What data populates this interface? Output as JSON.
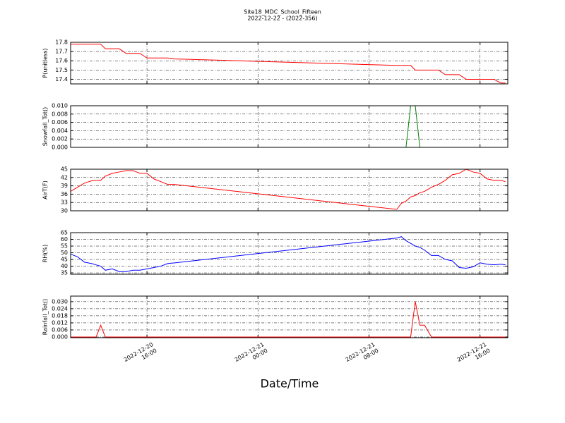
{
  "chart_data": [
    {
      "type": "line",
      "title": "Site18_MDC_School_Fifteen",
      "subtitle": "2022-12-22 - (2022-356)",
      "ylabel": "P(unitless)",
      "color": "#ff0000",
      "values": [
        17.78,
        17.78,
        17.78,
        17.78,
        17.78,
        17.78,
        17.73,
        17.73,
        17.73,
        17.68,
        17.68,
        17.68,
        17.63,
        17.63,
        17.63,
        17.63,
        17.62,
        17.55,
        17.55,
        17.55,
        17.55,
        17.5,
        17.5,
        17.5,
        17.5,
        17.5,
        17.45,
        17.45,
        17.45,
        17.4,
        17.4,
        17.4,
        17.4,
        17.4,
        17.36,
        17.36
      ],
      "ylim": [
        17.35,
        17.8
      ],
      "yticks": [
        17.4,
        17.5,
        17.6,
        17.7,
        17.8
      ],
      "grid": true
    },
    {
      "type": "line",
      "ylabel": "Snowfall_Tot()",
      "color": "#008000",
      "values": [
        0,
        0,
        0,
        0,
        0,
        0,
        0,
        0,
        0,
        0,
        0,
        0,
        0,
        0,
        0,
        0,
        0,
        0,
        0,
        0,
        0.01,
        0.01,
        0,
        0,
        0,
        0,
        0,
        0,
        0,
        0,
        0,
        0,
        0,
        0,
        0,
        0
      ],
      "ylim": [
        0,
        0.01
      ],
      "yticks": [
        {
          "value": 0,
          "label": "0.000"
        },
        {
          "value": 0.002,
          "label": "0.002"
        },
        {
          "value": 0.004,
          "label": "0.004"
        },
        {
          "value": 0.006,
          "label": "0.006"
        },
        {
          "value": 0.008,
          "label": "0.008"
        },
        {
          "value": 0.01,
          "label": "0.010"
        }
      ],
      "grid": true
    },
    {
      "type": "line",
      "ylabel": "AirT(F)",
      "color": "#ff0000",
      "values": [
        37,
        38.5,
        40,
        40.8,
        41,
        41,
        42.5,
        43.5,
        44,
        44.5,
        44.5,
        43.5,
        43.5,
        41.5,
        40.5,
        39.5,
        39.5,
        30.5,
        32.7,
        33.5,
        35,
        35.5,
        36.5,
        37,
        38.5,
        39.5,
        41,
        43,
        43.5,
        45,
        44,
        43.5,
        41.5,
        41,
        41,
        40.5
      ],
      "ylim": [
        30,
        45
      ],
      "yticks": [
        30,
        33,
        36,
        39,
        42,
        45
      ],
      "grid": true
    },
    {
      "type": "line",
      "ylabel": "RH(%)",
      "color": "#0000ff",
      "values": [
        49,
        47,
        43,
        42,
        41,
        40,
        37,
        38,
        36,
        36,
        37,
        37,
        38,
        39,
        40,
        42,
        42.5,
        61,
        62,
        59,
        57,
        55,
        54,
        52,
        48,
        48,
        45,
        44,
        39,
        38.5,
        39.5,
        42.5,
        41.5,
        41,
        41.5,
        41
      ],
      "ylim": [
        34,
        65
      ],
      "yticks": [
        35,
        40,
        45,
        50,
        55,
        60,
        65
      ],
      "grid": true
    },
    {
      "type": "line",
      "ylabel": "Rainfall_Tot()",
      "xlabel": "Date/Time",
      "color": "#ff0000",
      "x": [
        "2022-12-20 10:30",
        "2022-12-20 11:00",
        "2022-12-20 11:30",
        "2022-12-20 12:00",
        "2022-12-20 12:20",
        "2022-12-20 12:40",
        "2022-12-20 13:00",
        "2022-12-20 13:30",
        "2022-12-20 14:00",
        "2022-12-20 14:30",
        "2022-12-20 15:00",
        "2022-12-20 15:30",
        "2022-12-20 16:00",
        "2022-12-20 16:30",
        "2022-12-20 17:00",
        "2022-12-20 17:30",
        "2022-12-20 18:00",
        "2022-12-21 10:00",
        "2022-12-21 10:20",
        "2022-12-21 10:40",
        "2022-12-21 11:00",
        "2022-12-21 11:20",
        "2022-12-21 11:40",
        "2022-12-21 12:00",
        "2022-12-21 12:30",
        "2022-12-21 13:00",
        "2022-12-21 13:30",
        "2022-12-21 14:00",
        "2022-12-21 14:30",
        "2022-12-21 15:00",
        "2022-12-21 15:30",
        "2022-12-21 16:00",
        "2022-12-21 16:30",
        "2022-12-21 17:00",
        "2022-12-21 17:30",
        "2022-12-21 17:50"
      ],
      "values": [
        0,
        0,
        0,
        0,
        0,
        0.01,
        0,
        0,
        0,
        0,
        0,
        0,
        0,
        0,
        0,
        0,
        0,
        0,
        0,
        0,
        0,
        0.03,
        0.01,
        0.01,
        0,
        0,
        0,
        0,
        0,
        0,
        0,
        0,
        0,
        0,
        0,
        0
      ],
      "xlim": [
        "2022-12-20 10:30",
        "2022-12-21 18:00"
      ],
      "xticks": [
        "2022-12-20 16:00",
        "2022-12-21 00:00",
        "2022-12-21 08:00",
        "2022-12-21 16:00"
      ],
      "ylim": [
        -0.0006,
        0.0347
      ],
      "yticks": [
        {
          "value": 0,
          "label": "0.000"
        },
        {
          "value": 0.006,
          "label": "0.006"
        },
        {
          "value": 0.012,
          "label": "0.012"
        },
        {
          "value": 0.018,
          "label": "0.018"
        },
        {
          "value": 0.024,
          "label": "0.024"
        },
        {
          "value": 0.03,
          "label": "0.030"
        }
      ],
      "grid": true
    }
  ]
}
